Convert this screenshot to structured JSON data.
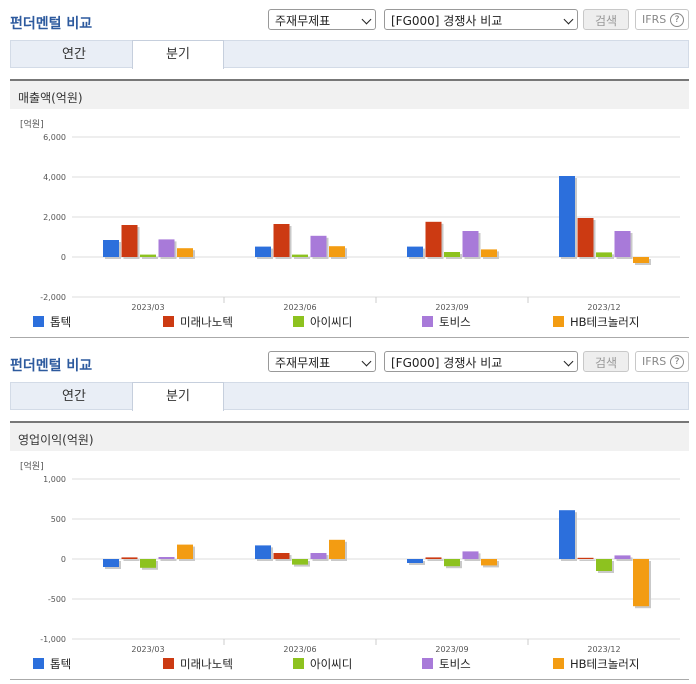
{
  "header": {
    "title": "펀더멘털 비교",
    "select_statement": "주재무제표",
    "select_compare": "[FG000] 경쟁사 비교",
    "search_label": "검색",
    "ifrs_label": "IFRS",
    "ifrs_help": "?"
  },
  "tabs": [
    "연간",
    "분기"
  ],
  "selected_tab": "분기",
  "colors": {
    "series": [
      "#2c6fdc",
      "#cc3a12",
      "#8dc21f",
      "#a87ad9",
      "#f39c12"
    ],
    "title": "#2d5a9e"
  },
  "legend": [
    "톱텍",
    "미래나노텍",
    "아이씨디",
    "토비스",
    "HB테크놀러지"
  ],
  "chart_data": [
    {
      "type": "bar",
      "section_label": "매출액(억원)",
      "unit_label": "[억원]",
      "categories": [
        "2023/03",
        "2023/06",
        "2023/09",
        "2023/12"
      ],
      "y_ticks": [
        "6,000",
        "4,000",
        "2,000",
        "0",
        "-2,000"
      ],
      "ylim": [
        -2000,
        6000
      ],
      "grid": true,
      "legend_position": "bottom",
      "series": [
        {
          "name": "톱텍",
          "values": [
            850,
            520,
            520,
            4050
          ]
        },
        {
          "name": "미래나노텍",
          "values": [
            1600,
            1650,
            1760,
            1950
          ]
        },
        {
          "name": "아이씨디",
          "values": [
            120,
            120,
            250,
            230
          ]
        },
        {
          "name": "토비스",
          "values": [
            880,
            1060,
            1300,
            1300
          ]
        },
        {
          "name": "HB테크놀러지",
          "values": [
            440,
            540,
            380,
            -300
          ]
        }
      ]
    },
    {
      "type": "bar",
      "section_label": "영업이익(억원)",
      "unit_label": "[억원]",
      "categories": [
        "2023/03",
        "2023/06",
        "2023/09",
        "2023/12"
      ],
      "y_ticks": [
        "1,000",
        "500",
        "0",
        "-500",
        "-1,000"
      ],
      "ylim": [
        -1000,
        1000
      ],
      "grid": true,
      "legend_position": "bottom",
      "series": [
        {
          "name": "톱텍",
          "values": [
            -100,
            170,
            -50,
            610
          ]
        },
        {
          "name": "미래나노텍",
          "values": [
            20,
            75,
            20,
            15
          ]
        },
        {
          "name": "아이씨디",
          "values": [
            -110,
            -70,
            -90,
            -150
          ]
        },
        {
          "name": "토비스",
          "values": [
            25,
            75,
            95,
            45
          ]
        },
        {
          "name": "HB테크놀러지",
          "values": [
            180,
            240,
            -80,
            -590
          ]
        }
      ]
    }
  ]
}
